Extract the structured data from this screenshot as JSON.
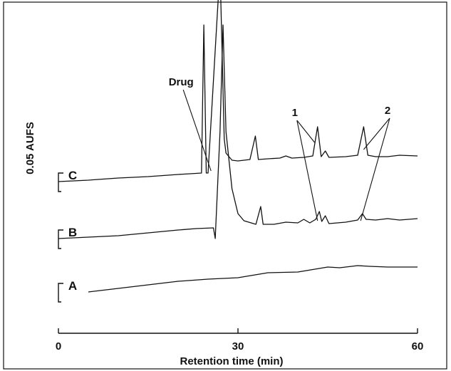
{
  "chart_data": {
    "type": "line",
    "xlabel": "Retention time (min)",
    "ylabel": "0.05 AUFS",
    "xlim": [
      0,
      60
    ],
    "xticks": [
      "0",
      "30",
      "60"
    ],
    "series": [
      {
        "name": "A",
        "baseline_level": 0.03,
        "points": [
          [
            5,
            0.0
          ],
          [
            10,
            0.005
          ],
          [
            15,
            0.01
          ],
          [
            20,
            0.015
          ],
          [
            25,
            0.018
          ],
          [
            30,
            0.02
          ],
          [
            35,
            0.027
          ],
          [
            40,
            0.028
          ],
          [
            45,
            0.035
          ],
          [
            47,
            0.034
          ],
          [
            50,
            0.037
          ],
          [
            52,
            0.036
          ],
          [
            55,
            0.035
          ],
          [
            60,
            0.035
          ]
        ]
      },
      {
        "name": "B",
        "baseline_level": 0.105,
        "points": [
          [
            0,
            0.0
          ],
          [
            5,
            0.002
          ],
          [
            10,
            0.004
          ],
          [
            15,
            0.008
          ],
          [
            20,
            0.012
          ],
          [
            23,
            0.014
          ],
          [
            25.9,
            0.015
          ],
          [
            26.2,
            0.0
          ],
          [
            27,
            0.15
          ],
          [
            27.5,
            0.3
          ],
          [
            28,
            0.15
          ],
          [
            29,
            0.07
          ],
          [
            30,
            0.035
          ],
          [
            31,
            0.025
          ],
          [
            33,
            0.02
          ],
          [
            33.8,
            0.045
          ],
          [
            34.2,
            0.02
          ],
          [
            36,
            0.02
          ],
          [
            38,
            0.023
          ],
          [
            40,
            0.022
          ],
          [
            41,
            0.027
          ],
          [
            42,
            0.022
          ],
          [
            43,
            0.027
          ],
          [
            43.6,
            0.038
          ],
          [
            44,
            0.024
          ],
          [
            44.6,
            0.032
          ],
          [
            45.2,
            0.021
          ],
          [
            48,
            0.023
          ],
          [
            50,
            0.026
          ],
          [
            50.8,
            0.035
          ],
          [
            51.4,
            0.027
          ],
          [
            53,
            0.026
          ],
          [
            55,
            0.028
          ],
          [
            57,
            0.026
          ],
          [
            60,
            0.028
          ]
        ]
      },
      {
        "name": "C",
        "baseline_level": 0.185,
        "points": [
          [
            0,
            0.0
          ],
          [
            5,
            0.002
          ],
          [
            10,
            0.005
          ],
          [
            15,
            0.007
          ],
          [
            20,
            0.01
          ],
          [
            22,
            0.011
          ],
          [
            23.9,
            0.012
          ],
          [
            24.3,
            0.22
          ],
          [
            24.7,
            0.012
          ],
          [
            25,
            0.012
          ],
          [
            27,
            0.3
          ],
          [
            27.7,
            0.06
          ],
          [
            28,
            0.04
          ],
          [
            29,
            0.03
          ],
          [
            30,
            0.029
          ],
          [
            31,
            0.03
          ],
          [
            32,
            0.031
          ],
          [
            32.9,
            0.064
          ],
          [
            33.4,
            0.031
          ],
          [
            35,
            0.032
          ],
          [
            37,
            0.033
          ],
          [
            38,
            0.036
          ],
          [
            39,
            0.033
          ],
          [
            41,
            0.034
          ],
          [
            42.5,
            0.036
          ],
          [
            43.3,
            0.077
          ],
          [
            43.9,
            0.035
          ],
          [
            44.6,
            0.043
          ],
          [
            45.2,
            0.034
          ],
          [
            48,
            0.035
          ],
          [
            50,
            0.037
          ],
          [
            51,
            0.077
          ],
          [
            51.7,
            0.037
          ],
          [
            53,
            0.035
          ],
          [
            55,
            0.035
          ],
          [
            57,
            0.037
          ],
          [
            60,
            0.036
          ]
        ]
      }
    ],
    "annotations": [
      {
        "text": "Drug",
        "x": 20.5,
        "target": [
          25.5,
          0.2
        ]
      },
      {
        "text": "1",
        "x": 39.5,
        "targets": [
          [
            42.8,
            0.24
          ],
          [
            43.3,
            0.13
          ]
        ]
      },
      {
        "text": "2",
        "x": 55,
        "targets": [
          [
            51,
            0.23
          ],
          [
            50.5,
            0.13
          ]
        ]
      }
    ]
  }
}
